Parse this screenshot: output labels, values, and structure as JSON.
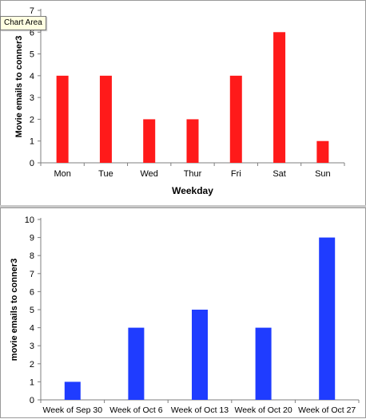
{
  "tooltip": "Chart Area",
  "chart_data": [
    {
      "type": "bar",
      "categories": [
        "Mon",
        "Tue",
        "Wed",
        "Thur",
        "Fri",
        "Sat",
        "Sun"
      ],
      "values": [
        4,
        4,
        2,
        2,
        4,
        6,
        1
      ],
      "xlabel": "Weekday",
      "ylabel": "Movie emails to conner3",
      "ylim": [
        0,
        7
      ],
      "yticks": [
        0,
        1,
        2,
        3,
        4,
        5,
        6,
        7
      ],
      "color": "#ff1a1a",
      "grid": false,
      "legend": "none"
    },
    {
      "type": "bar",
      "categories": [
        "Week of Sep 30",
        "Week of Oct 6",
        "Week of Oct 13",
        "Week of Oct 20",
        "Week of Oct 27"
      ],
      "values": [
        1,
        4,
        5,
        4,
        9
      ],
      "xlabel": "",
      "ylabel": "movie emails to conner3",
      "ylim": [
        0,
        10
      ],
      "yticks": [
        0,
        1,
        2,
        3,
        4,
        5,
        6,
        7,
        8,
        9,
        10
      ],
      "color": "#1f3cff",
      "grid": false,
      "legend": "none"
    }
  ]
}
